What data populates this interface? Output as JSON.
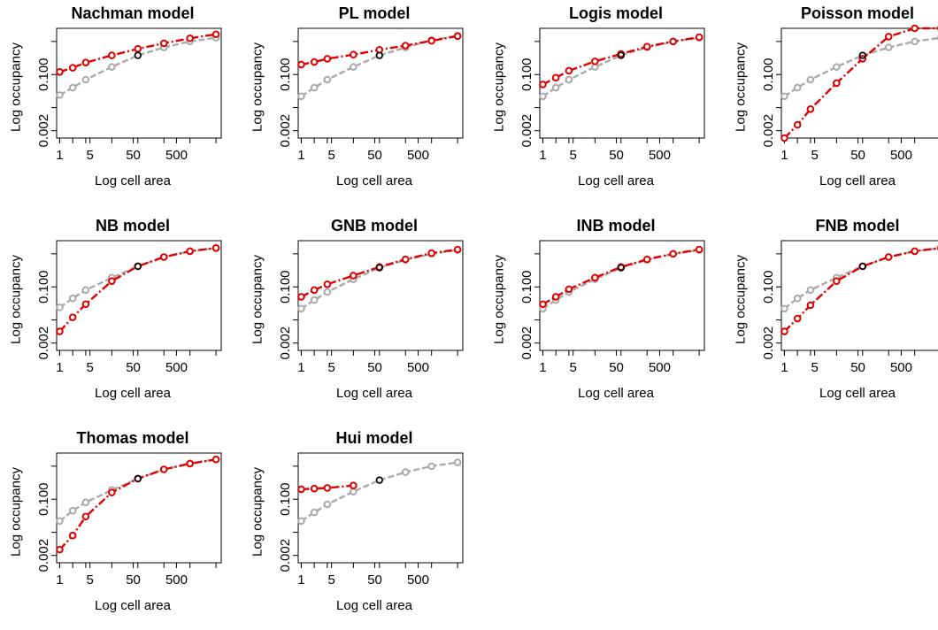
{
  "chart_data": [
    {
      "type": "line",
      "title": "Nachman model",
      "xlabel": "Log cell area",
      "ylabel": "Log occupancy",
      "x_scale": "log",
      "y_scale": "log",
      "xticks": [
        "1",
        "5",
        "50",
        "500"
      ],
      "yticks": [
        "0.002",
        "0.100"
      ],
      "x": [
        1,
        2,
        4,
        16,
        64,
        256,
        1024,
        4096
      ],
      "series": [
        {
          "color": "#aaaaaa",
          "values": [
            0.024,
            0.04,
            0.07,
            0.17,
            0.38,
            0.66,
            1.0,
            1.3
          ]
        },
        {
          "color": "#e00000",
          "values": [
            0.12,
            0.16,
            0.23,
            0.38,
            0.6,
            0.88,
            1.25,
            1.65
          ]
        }
      ]
    },
    {
      "type": "line",
      "title": "PL model",
      "xlabel": "Log cell area",
      "ylabel": "Log occupancy",
      "x_scale": "log",
      "y_scale": "log",
      "xticks": [
        "1",
        "5",
        "50",
        "500"
      ],
      "yticks": [
        "0.002",
        "0.100"
      ],
      "x": [
        1,
        2,
        4,
        16,
        64,
        256,
        1024,
        4096
      ],
      "series": [
        {
          "color": "#aaaaaa",
          "values": [
            0.022,
            0.04,
            0.07,
            0.17,
            0.38,
            0.66,
            1.1,
            1.5
          ]
        },
        {
          "color": "#e00000",
          "values": [
            0.2,
            0.24,
            0.3,
            0.4,
            0.56,
            0.75,
            1.05,
            1.45
          ]
        }
      ]
    },
    {
      "type": "line",
      "title": "Logis model",
      "xlabel": "Log cell area",
      "ylabel": "Log occupancy",
      "x_scale": "log",
      "y_scale": "log",
      "xticks": [
        "1",
        "5",
        "50",
        "500"
      ],
      "yticks": [
        "0.002",
        "0.100"
      ],
      "x": [
        1,
        2,
        4,
        16,
        64,
        256,
        1024,
        4096
      ],
      "series": [
        {
          "color": "#aaaaaa",
          "values": [
            0.022,
            0.04,
            0.07,
            0.17,
            0.38,
            0.66,
            1.0,
            1.3
          ]
        },
        {
          "color": "#e00000",
          "values": [
            0.05,
            0.08,
            0.13,
            0.25,
            0.42,
            0.7,
            1.0,
            1.35
          ]
        }
      ]
    },
    {
      "type": "line",
      "title": "Poisson model",
      "xlabel": "Log cell area",
      "ylabel": "Log occupancy",
      "x_scale": "log",
      "y_scale": "log",
      "xticks": [
        "1",
        "5",
        "50",
        "500"
      ],
      "yticks": [
        "0.002",
        "0.100"
      ],
      "x": [
        1,
        2,
        4,
        16,
        64,
        256,
        1024,
        4096
      ],
      "series": [
        {
          "color": "#aaaaaa",
          "values": [
            0.022,
            0.04,
            0.07,
            0.17,
            0.38,
            0.66,
            1.0,
            1.3
          ]
        },
        {
          "color": "#e00000",
          "values": [
            0.0012,
            0.003,
            0.009,
            0.055,
            0.3,
            1.4,
            2.5,
            2.5
          ]
        }
      ]
    },
    {
      "type": "line",
      "title": "NB model",
      "xlabel": "Log cell area",
      "ylabel": "Log occupancy",
      "x_scale": "log",
      "y_scale": "log",
      "xticks": [
        "1",
        "5",
        "50",
        "500"
      ],
      "yticks": [
        "0.002",
        "0.100"
      ],
      "x": [
        1,
        2,
        4,
        16,
        64,
        256,
        1024,
        4096
      ],
      "series": [
        {
          "color": "#aaaaaa",
          "values": [
            0.024,
            0.045,
            0.08,
            0.19,
            0.42,
            0.8,
            1.2,
            1.5
          ]
        },
        {
          "color": "#e00000",
          "values": [
            0.0045,
            0.012,
            0.03,
            0.15,
            0.42,
            0.8,
            1.2,
            1.5
          ]
        }
      ]
    },
    {
      "type": "line",
      "title": "GNB model",
      "xlabel": "Log cell area",
      "ylabel": "Log occupancy",
      "x_scale": "log",
      "y_scale": "log",
      "xticks": [
        "1",
        "5",
        "50",
        "500"
      ],
      "yticks": [
        "0.002",
        "0.100"
      ],
      "x": [
        1,
        2,
        4,
        16,
        64,
        256,
        1024,
        4096
      ],
      "series": [
        {
          "color": "#aaaaaa",
          "values": [
            0.022,
            0.04,
            0.07,
            0.17,
            0.38,
            0.66,
            1.0,
            1.3
          ]
        },
        {
          "color": "#e00000",
          "values": [
            0.05,
            0.08,
            0.12,
            0.22,
            0.4,
            0.68,
            1.05,
            1.35
          ]
        }
      ]
    },
    {
      "type": "line",
      "title": "INB model",
      "xlabel": "Log cell area",
      "ylabel": "Log occupancy",
      "x_scale": "log",
      "y_scale": "log",
      "xticks": [
        "1",
        "5",
        "50",
        "500"
      ],
      "yticks": [
        "0.002",
        "0.100"
      ],
      "x": [
        1,
        2,
        4,
        16,
        64,
        256,
        1024,
        4096
      ],
      "series": [
        {
          "color": "#aaaaaa",
          "values": [
            0.022,
            0.04,
            0.07,
            0.17,
            0.38,
            0.66,
            1.0,
            1.3
          ]
        },
        {
          "color": "#e00000",
          "values": [
            0.03,
            0.05,
            0.085,
            0.19,
            0.4,
            0.68,
            1.0,
            1.35
          ]
        }
      ]
    },
    {
      "type": "line",
      "title": "FNB model",
      "xlabel": "Log cell area",
      "ylabel": "Log occupancy",
      "x_scale": "log",
      "y_scale": "log",
      "xticks": [
        "1",
        "5",
        "50",
        "500"
      ],
      "yticks": [
        "0.002",
        "0.100"
      ],
      "x": [
        1,
        2,
        4,
        16,
        64,
        256,
        1024,
        4096
      ],
      "series": [
        {
          "color": "#aaaaaa",
          "values": [
            0.022,
            0.045,
            0.08,
            0.19,
            0.42,
            0.8,
            1.2,
            1.5
          ]
        },
        {
          "color": "#e00000",
          "values": [
            0.0045,
            0.011,
            0.028,
            0.15,
            0.42,
            0.8,
            1.2,
            1.5
          ]
        }
      ]
    },
    {
      "type": "line",
      "title": "Thomas model",
      "xlabel": "Log cell area",
      "ylabel": "Log occupancy",
      "x_scale": "log",
      "y_scale": "log",
      "xticks": [
        "1",
        "5",
        "50",
        "500"
      ],
      "yticks": [
        "0.002",
        "0.100"
      ],
      "x": [
        1,
        2,
        4,
        16,
        64,
        256,
        1024,
        4096
      ],
      "series": [
        {
          "color": "#aaaaaa",
          "values": [
            0.022,
            0.045,
            0.08,
            0.19,
            0.42,
            0.8,
            1.2,
            1.6
          ]
        },
        {
          "color": "#e00000",
          "values": [
            0.003,
            0.008,
            0.03,
            0.16,
            0.42,
            0.8,
            1.2,
            1.6
          ]
        }
      ]
    },
    {
      "type": "line",
      "title": "Hui model",
      "xlabel": "Log cell area",
      "ylabel": "Log occupancy",
      "x_scale": "log",
      "y_scale": "log",
      "xticks": [
        "1",
        "5",
        "50",
        "500"
      ],
      "yticks": [
        "0.002",
        "0.100"
      ],
      "x": [
        1,
        2,
        4,
        16,
        64,
        256,
        1024,
        4096
      ],
      "series": [
        {
          "color": "#aaaaaa",
          "values": [
            0.022,
            0.04,
            0.07,
            0.17,
            0.38,
            0.66,
            1.0,
            1.3
          ]
        },
        {
          "color": "#e00000",
          "x": [
            1,
            2,
            4,
            16
          ],
          "values": [
            0.2,
            0.21,
            0.22,
            0.26
          ]
        }
      ]
    }
  ]
}
